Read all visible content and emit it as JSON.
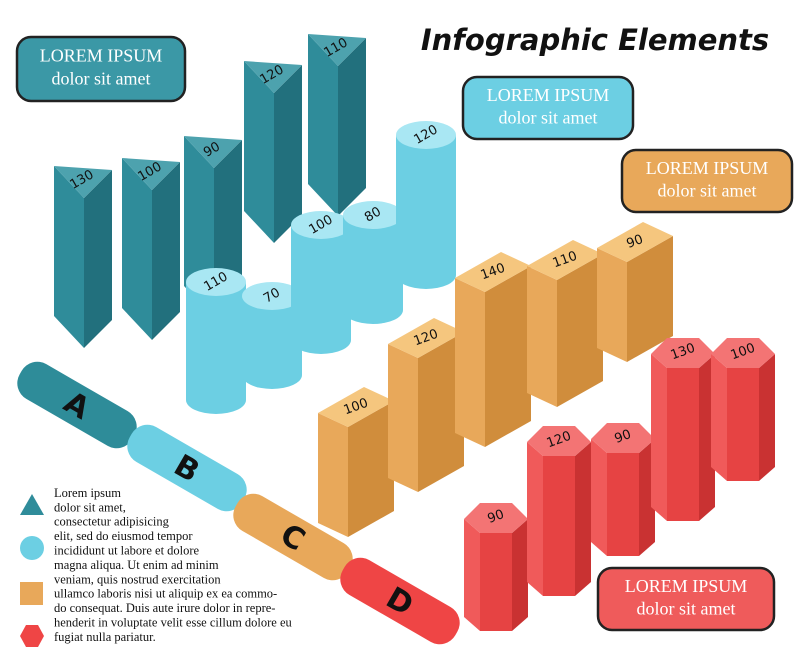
{
  "title": "Infographic Elements",
  "callouts": [
    {
      "heading": "LOREM IPSUM",
      "text": "dolor sit amet"
    },
    {
      "heading": "LOREM IPSUM",
      "text": "dolor sit amet"
    },
    {
      "heading": "LOREM IPSUM",
      "text": "dolor sit amet"
    },
    {
      "heading": "LOREM IPSUM",
      "text": "dolor sit amet"
    }
  ],
  "prisms": [
    130,
    100,
    90,
    120,
    110
  ],
  "cylinders": [
    110,
    70,
    100,
    80,
    120
  ],
  "boxes": [
    100,
    120,
    140,
    110,
    90
  ],
  "hexagons": [
    90,
    120,
    90,
    130,
    100
  ],
  "letters": [
    "A",
    "B",
    "C",
    "D"
  ],
  "legend_text": [
    "Lorem ipsum",
    "dolor sit amet,",
    "consectetur adipisicing",
    "elit, sed do eiusmod tempor",
    "incididunt ut labore et dolore",
    "magna aliqua. Ut enim ad minim",
    "veniam, quis nostrud exercitation",
    "ullamco laboris nisi ut aliquip ex ea commo-",
    "do consequat. Duis aute irure dolor in repre-",
    "henderit in voluptate velit esse cillum dolore eu",
    "fugiat nulla pariatur."
  ]
}
